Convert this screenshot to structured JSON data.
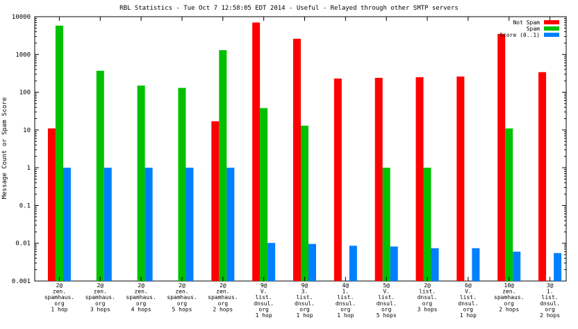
{
  "chart_data": {
    "type": "bar",
    "title": "RBL Statistics - Tue Oct  7 12:58:05 EDT 2014 - Useful - Relayed through other SMTP servers",
    "xlabel": "",
    "ylabel": "Message Count or Spam Score",
    "yscale": "log",
    "ylim": [
      0.001,
      10000
    ],
    "yticks": [
      "0.001",
      "0.01",
      "0.1",
      "1",
      "10",
      "100",
      "1000",
      "10000"
    ],
    "grid": false,
    "legend_position": "top-right",
    "categories": [
      [
        "2@",
        "zen.",
        "spamhaus.",
        "org",
        "1 hop"
      ],
      [
        "2@",
        "zen.",
        "spamhaus.",
        "org",
        "3 hops"
      ],
      [
        "2@",
        "zen.",
        "spamhaus.",
        "org",
        "4 hops"
      ],
      [
        "2@",
        "zen.",
        "spamhaus.",
        "org",
        "5 hops"
      ],
      [
        "2@",
        "zen.",
        "spamhaus.",
        "org",
        "2 hops"
      ],
      [
        "9@",
        "V.",
        "list.",
        "dnsul.",
        "org",
        "1 hop"
      ],
      [
        "9@",
        "3.",
        "list.",
        "dnsul.",
        "org",
        "1 hop"
      ],
      [
        "4@",
        "1.",
        "list.",
        "dnsul.",
        "org",
        "1 hop"
      ],
      [
        "5@",
        "V.",
        "list.",
        "dnsul.",
        "org",
        "5 hops"
      ],
      [
        "2@",
        "list.",
        "dnsul.",
        "org",
        "3 hops"
      ],
      [
        "6@",
        "V.",
        "list.",
        "dnsul.",
        "org",
        "1 hop"
      ],
      [
        "10@",
        "zen.",
        "spamhaus.",
        "org",
        "2 hops"
      ],
      [
        "3@",
        "1.",
        "list.",
        "dnsul.",
        "org",
        "2 hops"
      ]
    ],
    "series": [
      {
        "name": "Not Spam",
        "color": "#ff0000",
        "values": [
          11,
          null,
          null,
          null,
          17,
          7000,
          2600,
          230,
          240,
          250,
          260,
          3500,
          340
        ]
      },
      {
        "name": "Spam",
        "color": "#00c000",
        "values": [
          5800,
          370,
          150,
          130,
          1300,
          38,
          13,
          null,
          1,
          1,
          null,
          11,
          null
        ]
      },
      {
        "name": "Score (0..1)",
        "color": "#0080ff",
        "values": [
          1,
          1,
          1,
          1,
          1,
          0.0102,
          0.0096,
          0.0086,
          0.0082,
          0.0074,
          0.0074,
          0.006,
          0.0055
        ]
      }
    ]
  }
}
